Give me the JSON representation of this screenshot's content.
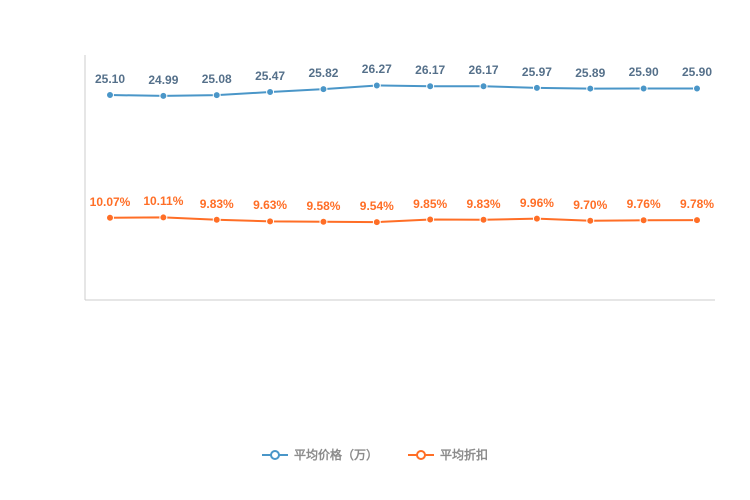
{
  "chart_data": {
    "type": "line",
    "title": "",
    "xlabel": "",
    "ylabel": "",
    "ylim": [
      0,
      30
    ],
    "grid": false,
    "legend_position": "bottom",
    "axis_color": "#cccccc",
    "legend_text_color": "#8c8c8c",
    "series": [
      {
        "name": "平均价格（万）",
        "color": "#4A96C8",
        "label_color": "#55708A",
        "values": [
          25.1,
          24.99,
          25.08,
          25.47,
          25.82,
          26.27,
          26.17,
          26.17,
          25.97,
          25.89,
          25.9,
          25.9
        ],
        "labels": [
          "25.10",
          "24.99",
          "25.08",
          "25.47",
          "25.82",
          "26.27",
          "26.17",
          "26.17",
          "25.97",
          "25.89",
          "25.90",
          "25.90"
        ]
      },
      {
        "name": "平均折扣",
        "color": "#FF6E26",
        "label_color": "#FF6E26",
        "values": [
          10.07,
          10.11,
          9.83,
          9.63,
          9.58,
          9.54,
          9.85,
          9.83,
          9.96,
          9.7,
          9.76,
          9.78
        ],
        "labels": [
          "10.07%",
          "10.11%",
          "9.83%",
          "9.63%",
          "9.58%",
          "9.54%",
          "9.85%",
          "9.83%",
          "9.96%",
          "9.70%",
          "9.76%",
          "9.78%"
        ]
      }
    ]
  }
}
